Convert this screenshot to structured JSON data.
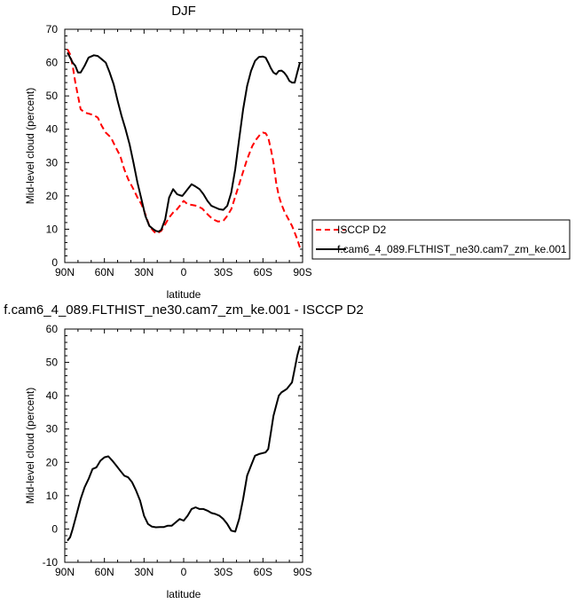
{
  "chart_data": [
    {
      "type": "line",
      "title": "DJF",
      "xlabel": "latitude",
      "ylabel": "Mid-level cloud (percent)",
      "xlim": [
        -90,
        90
      ],
      "ylim": [
        0,
        70
      ],
      "xticks": [
        -90,
        -60,
        -30,
        0,
        30,
        60,
        90
      ],
      "xtick_labels": [
        "90N",
        "60N",
        "30N",
        "0",
        "30S",
        "60S",
        "90S"
      ],
      "yticks": [
        0,
        10,
        20,
        30,
        40,
        50,
        60,
        70
      ],
      "ytick_labels": [
        "0",
        "10",
        "20",
        "30",
        "40",
        "50",
        "60",
        "70"
      ],
      "grid": false,
      "legend_position": "right",
      "series": [
        {
          "name": "ISCCP D2",
          "color": "#ff0000",
          "dash": "dashed",
          "x": [
            -88,
            -86,
            -84,
            -82,
            -80,
            -78,
            -75,
            -72,
            -68,
            -65,
            -62,
            -59,
            -55,
            -52,
            -48,
            -45,
            -42,
            -38,
            -35,
            -32,
            -29,
            -26,
            -23,
            -21,
            -19,
            -17,
            -14,
            -11,
            -8,
            -5,
            -2,
            0,
            3,
            6,
            10,
            14,
            18,
            22,
            26,
            30,
            33,
            36,
            40,
            44,
            48,
            52,
            55,
            58,
            60,
            62,
            64,
            66,
            68,
            70,
            72,
            74,
            76,
            78,
            80,
            82,
            84,
            86,
            88
          ],
          "y": [
            64,
            62.5,
            59,
            54,
            50,
            46,
            45,
            44.7,
            44.2,
            43.5,
            41,
            39,
            37.5,
            35,
            32,
            28,
            25,
            22,
            19.5,
            17.5,
            14.5,
            11,
            9.5,
            8.7,
            9,
            9.5,
            11.5,
            13.5,
            15,
            16,
            17.5,
            18.5,
            17.5,
            17.3,
            17,
            16.2,
            14.5,
            13,
            12.3,
            12.5,
            14,
            16,
            21,
            26,
            31,
            35,
            37,
            38.5,
            39,
            38.8,
            37.5,
            34,
            30,
            24,
            20,
            17.5,
            15.5,
            14,
            12.5,
            11,
            9,
            7,
            4.5
          ]
        },
        {
          "name": "f.cam6_4_089.FLTHIST_ne30.cam7_zm_ke.001",
          "color": "#000000",
          "dash": "solid",
          "x": [
            -88,
            -86,
            -84,
            -82,
            -80,
            -78,
            -75,
            -72,
            -68,
            -65,
            -62,
            -59,
            -56,
            -53,
            -50,
            -47,
            -44,
            -41,
            -38,
            -35,
            -32,
            -29,
            -26,
            -23,
            -21,
            -19,
            -17,
            -14,
            -11,
            -8,
            -5,
            -3,
            -1,
            1,
            3,
            6,
            9,
            12,
            15,
            18,
            21,
            24,
            27,
            30,
            33,
            36,
            39,
            42,
            45,
            48,
            51,
            54,
            57,
            60,
            62,
            64,
            66,
            68,
            70,
            72,
            74,
            76,
            78,
            80,
            82,
            84,
            86,
            88
          ],
          "y": [
            63,
            61.5,
            60,
            59,
            57,
            57,
            59,
            61.5,
            62.2,
            62,
            61,
            60,
            57,
            53.5,
            48.5,
            44,
            40,
            35.5,
            30,
            24,
            19,
            14,
            11,
            10,
            9.5,
            9.3,
            9.8,
            13,
            19.5,
            22,
            20.5,
            20.2,
            20,
            21,
            22,
            23.5,
            22.8,
            22,
            20.5,
            18.5,
            17,
            16.5,
            16,
            15.8,
            17,
            21,
            28,
            37,
            46,
            53,
            57.5,
            60.5,
            61.7,
            61.8,
            61.5,
            60,
            58.3,
            57,
            56.5,
            57.5,
            57.6,
            57,
            56,
            54.5,
            54,
            54,
            57,
            60
          ]
        }
      ]
    },
    {
      "type": "line",
      "title": "f.cam6_4_089.FLTHIST_ne30.cam7_zm_ke.001 - ISCCP D2",
      "xlabel": "latitude",
      "ylabel": "Mid-level cloud (percent)",
      "xlim": [
        -90,
        90
      ],
      "ylim": [
        -10,
        60
      ],
      "xticks": [
        -90,
        -60,
        -30,
        0,
        30,
        60,
        90
      ],
      "xtick_labels": [
        "90N",
        "60N",
        "30N",
        "0",
        "30S",
        "60S",
        "90S"
      ],
      "yticks": [
        -10,
        0,
        10,
        20,
        30,
        40,
        50,
        60
      ],
      "ytick_labels": [
        "-10",
        "0",
        "10",
        "20",
        "30",
        "40",
        "50",
        "60"
      ],
      "grid": false,
      "series": [
        {
          "color": "#000000",
          "dash": "solid",
          "x": [
            -88,
            -86,
            -84,
            -82,
            -80,
            -78,
            -75,
            -72,
            -69,
            -66,
            -63,
            -60,
            -57,
            -54,
            -51,
            -48,
            -45,
            -42,
            -39,
            -36,
            -33,
            -30,
            -27,
            -24,
            -21,
            -18,
            -15,
            -12,
            -9,
            -6,
            -3,
            0,
            3,
            6,
            9,
            12,
            15,
            18,
            21,
            24,
            27,
            30,
            33,
            36,
            39,
            42,
            45,
            48,
            51,
            54,
            57,
            60,
            62,
            64,
            66,
            68,
            70,
            72,
            74,
            76,
            78,
            80,
            82,
            84,
            86,
            88
          ],
          "y": [
            -3.5,
            -2.5,
            0,
            3,
            6,
            9,
            12.5,
            15,
            18,
            18.5,
            20.5,
            21.5,
            21.8,
            20.5,
            19,
            17.5,
            16,
            15.5,
            14,
            11.5,
            8.5,
            4,
            1.5,
            0.7,
            0.5,
            0.6,
            0.6,
            1,
            1,
            2,
            3,
            2.5,
            4,
            6,
            6.5,
            6,
            6,
            5.5,
            4.8,
            4.5,
            4,
            3,
            1.5,
            -0.5,
            -0.8,
            3,
            9,
            16,
            19,
            22,
            22.5,
            22.8,
            23,
            24,
            29,
            34,
            37,
            40,
            41,
            41.5,
            42,
            43,
            44,
            48,
            52,
            55
          ]
        }
      ]
    }
  ]
}
